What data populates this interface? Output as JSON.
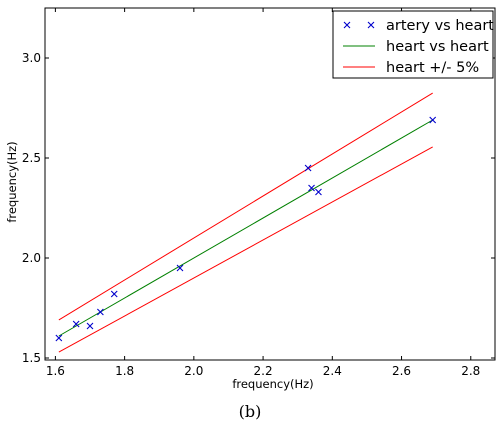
{
  "chart_data": {
    "type": "line",
    "xlabel": "frequency(Hz)",
    "ylabel": "frequency(Hz)",
    "caption": "(b)",
    "xlim": [
      1.57,
      2.87
    ],
    "ylim": [
      1.49,
      3.25
    ],
    "xticks": [
      1.6,
      1.8,
      2.0,
      2.2,
      2.4,
      2.6,
      2.8
    ],
    "xtick_labels": [
      "1.6",
      "1.8",
      "2.0",
      "2.2",
      "2.4",
      "2.6",
      "2.8"
    ],
    "yticks": [
      1.5,
      2.0,
      2.5,
      3.0
    ],
    "ytick_labels": [
      "1.5",
      "2.0",
      "2.5",
      "3.0"
    ],
    "grid": false,
    "legend_position": "top-right",
    "series": [
      {
        "name": "artery vs heart",
        "kind": "scatter",
        "marker": "x",
        "color": "#0000cc",
        "x": [
          1.61,
          1.66,
          1.7,
          1.73,
          1.77,
          1.96,
          2.33,
          2.34,
          2.36,
          2.69
        ],
        "y": [
          1.6,
          1.67,
          1.66,
          1.73,
          1.82,
          1.95,
          2.45,
          2.35,
          2.33,
          2.69
        ]
      },
      {
        "name": "heart vs heart",
        "kind": "line",
        "color": "#008000",
        "x": [
          1.61,
          2.69
        ],
        "y": [
          1.61,
          2.69
        ]
      },
      {
        "name": "heart +/- 5%",
        "kind": "line",
        "color": "#ff0000",
        "lines": [
          {
            "x": [
              1.61,
              2.69
            ],
            "y": [
              1.6905,
              2.8245
            ]
          },
          {
            "x": [
              1.61,
              2.69
            ],
            "y": [
              1.5295,
              2.5555
            ]
          }
        ]
      }
    ]
  }
}
